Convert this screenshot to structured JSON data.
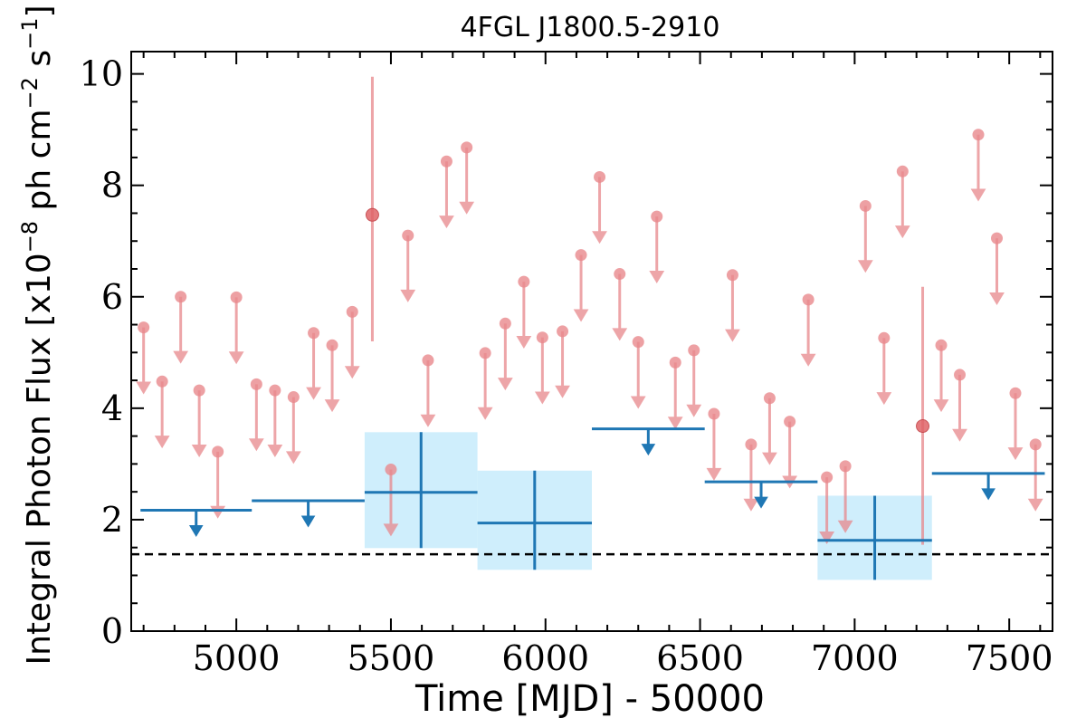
{
  "chart_data": {
    "type": "scatter",
    "title": "4FGL J1800.5-2910",
    "xlabel": "Time [MJD] - 50000",
    "ylabel": {
      "pre": "Integral Photon Flux [x10",
      "exp1": "−8",
      "mid": " ph cm",
      "exp2": "−2",
      "mid2": " s",
      "exp3": "−1",
      "post": "]"
    },
    "xlim": [
      4660,
      7640
    ],
    "ylim": [
      0,
      10.4
    ],
    "x_ticks": [
      5000,
      5500,
      6000,
      6500,
      7000,
      7500
    ],
    "y_ticks": [
      0,
      2,
      4,
      6,
      8,
      10
    ],
    "grid": false,
    "colors": {
      "upper_limit_short": "#e8888c",
      "detection_short": "#e06468",
      "long_bin": "#1f77b4",
      "error_box": "#cfeefc",
      "baseline": "#000000"
    },
    "baseline_flux": 1.38,
    "series": [
      {
        "kind": "short-bin upper limits",
        "arrow_length": 1.2,
        "points": [
          {
            "x": 4700,
            "y": 5.45
          },
          {
            "x": 4760,
            "y": 4.48
          },
          {
            "x": 4820,
            "y": 6.0
          },
          {
            "x": 4880,
            "y": 4.32
          },
          {
            "x": 4940,
            "y": 3.22
          },
          {
            "x": 5000,
            "y": 5.99
          },
          {
            "x": 5065,
            "y": 4.43
          },
          {
            "x": 5125,
            "y": 4.32
          },
          {
            "x": 5185,
            "y": 4.2
          },
          {
            "x": 5250,
            "y": 5.35
          },
          {
            "x": 5310,
            "y": 5.13
          },
          {
            "x": 5375,
            "y": 5.73
          },
          {
            "x": 5500,
            "y": 2.9
          },
          {
            "x": 5555,
            "y": 7.1
          },
          {
            "x": 5620,
            "y": 4.86
          },
          {
            "x": 5680,
            "y": 8.43
          },
          {
            "x": 5745,
            "y": 8.68
          },
          {
            "x": 5805,
            "y": 4.99
          },
          {
            "x": 5870,
            "y": 5.52
          },
          {
            "x": 5930,
            "y": 6.27
          },
          {
            "x": 5990,
            "y": 5.27
          },
          {
            "x": 6055,
            "y": 5.38
          },
          {
            "x": 6115,
            "y": 6.75
          },
          {
            "x": 6175,
            "y": 8.15
          },
          {
            "x": 6240,
            "y": 6.41
          },
          {
            "x": 6300,
            "y": 5.19
          },
          {
            "x": 6360,
            "y": 7.44
          },
          {
            "x": 6420,
            "y": 4.82
          },
          {
            "x": 6480,
            "y": 5.04
          },
          {
            "x": 6545,
            "y": 3.9
          },
          {
            "x": 6605,
            "y": 6.39
          },
          {
            "x": 6665,
            "y": 3.35
          },
          {
            "x": 6725,
            "y": 4.18
          },
          {
            "x": 6790,
            "y": 3.76
          },
          {
            "x": 6850,
            "y": 5.95
          },
          {
            "x": 6910,
            "y": 2.76
          },
          {
            "x": 6970,
            "y": 2.96
          },
          {
            "x": 7035,
            "y": 7.63
          },
          {
            "x": 7095,
            "y": 5.26
          },
          {
            "x": 7155,
            "y": 8.25
          },
          {
            "x": 7280,
            "y": 5.13
          },
          {
            "x": 7340,
            "y": 4.6
          },
          {
            "x": 7400,
            "y": 8.91
          },
          {
            "x": 7460,
            "y": 7.05
          },
          {
            "x": 7520,
            "y": 4.27
          },
          {
            "x": 7585,
            "y": 3.35
          }
        ]
      },
      {
        "kind": "short-bin detections",
        "points": [
          {
            "x": 5440,
            "y": 7.47,
            "ylo": 5.2,
            "yhi": 9.95
          },
          {
            "x": 7220,
            "y": 3.68,
            "ylo": 1.55,
            "yhi": 6.18
          }
        ]
      },
      {
        "kind": "long-bin upper limits",
        "arrow_length": 0.48,
        "bins": [
          {
            "x0": 4690,
            "x1": 5050,
            "y": 2.17
          },
          {
            "x0": 5050,
            "x1": 5415,
            "y": 2.34
          },
          {
            "x0": 6150,
            "x1": 6515,
            "y": 3.63
          },
          {
            "x0": 6515,
            "x1": 6880,
            "y": 2.68
          },
          {
            "x0": 7250,
            "x1": 7615,
            "y": 2.83
          }
        ]
      },
      {
        "kind": "long-bin detections",
        "bins": [
          {
            "x0": 5415,
            "x1": 5780,
            "y": 2.49,
            "ylo": 1.49,
            "yhi": 3.57
          },
          {
            "x0": 5780,
            "x1": 6150,
            "y": 1.94,
            "ylo": 1.1,
            "yhi": 2.88
          },
          {
            "x0": 6880,
            "x1": 7250,
            "y": 1.63,
            "ylo": 0.92,
            "yhi": 2.43
          }
        ]
      }
    ]
  }
}
